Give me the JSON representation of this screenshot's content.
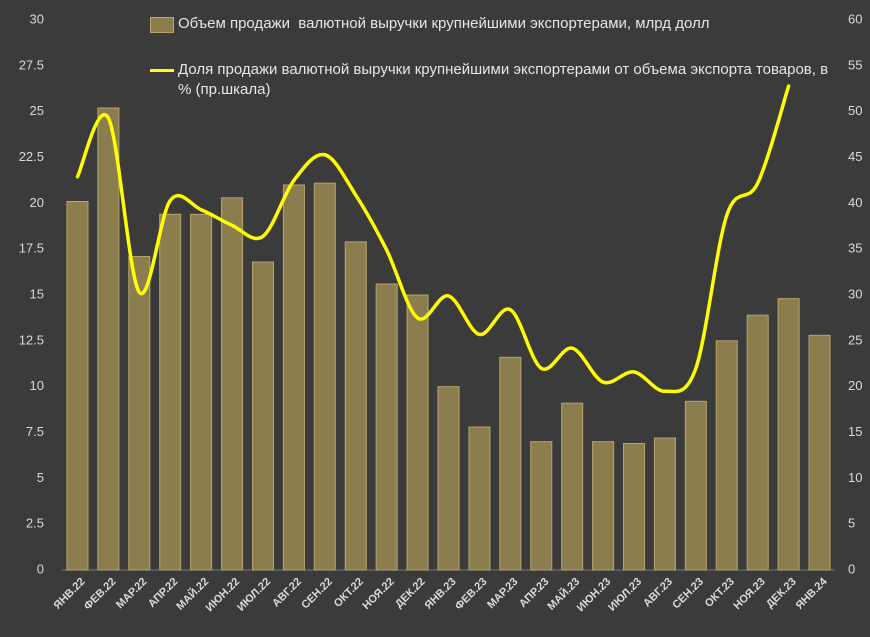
{
  "chart_data": {
    "type": "bar_line",
    "categories": [
      "ЯНВ.22",
      "ФЕВ.22",
      "МАР.22",
      "АПР.22",
      "МАЙ.22",
      "ИЮН.22",
      "ИЮЛ.22",
      "АВГ.22",
      "СЕН.22",
      "ОКТ.22",
      "НОЯ.22",
      "ДЕК.22",
      "ЯНВ.23",
      "ФЕВ.23",
      "МАР.23",
      "АПР.23",
      "МАЙ.23",
      "ИЮН.23",
      "ИЮЛ.23",
      "АВГ.23",
      "СЕН.23",
      "ОКТ.23",
      "НОЯ.23",
      "ДЕК.23",
      "ЯНВ.24"
    ],
    "series": [
      {
        "name": "Объем продажи  валютной выручки крупнейшими экспортерами, млрд долл",
        "type": "bar",
        "color": "#8c7d4e",
        "values": [
          20.1,
          25.2,
          17.1,
          19.4,
          19.4,
          20.3,
          16.8,
          21.0,
          21.1,
          17.9,
          15.6,
          15.0,
          10.0,
          7.8,
          11.6,
          7.0,
          9.1,
          7.0,
          6.9,
          7.2,
          9.2,
          12.5,
          13.9,
          14.8,
          12.8
        ]
      },
      {
        "name": "Доля продажи валютной выручки крупнейшими экспортерами от объема экспорта товаров, в % (пр.шкала)",
        "type": "line",
        "axis": "y2",
        "color": "#ffff00",
        "values": [
          42.9,
          49.3,
          30.3,
          40.3,
          39.3,
          37.6,
          36.4,
          42.5,
          45.3,
          40.9,
          34.9,
          27.5,
          29.9,
          25.7,
          28.4,
          22.0,
          24.2,
          20.5,
          21.6,
          19.5,
          22.0,
          38.7,
          42.2,
          52.8,
          null
        ]
      }
    ],
    "ylim": [
      0,
      30
    ],
    "yticks": [
      0,
      2.5,
      5,
      7.5,
      10,
      12.5,
      15,
      17.5,
      20,
      22.5,
      25,
      27.5,
      30
    ],
    "y2lim": [
      0,
      60
    ],
    "y2ticks": [
      0,
      5,
      10,
      15,
      20,
      25,
      30,
      35,
      40,
      45,
      50,
      55,
      60
    ],
    "grid": false
  }
}
